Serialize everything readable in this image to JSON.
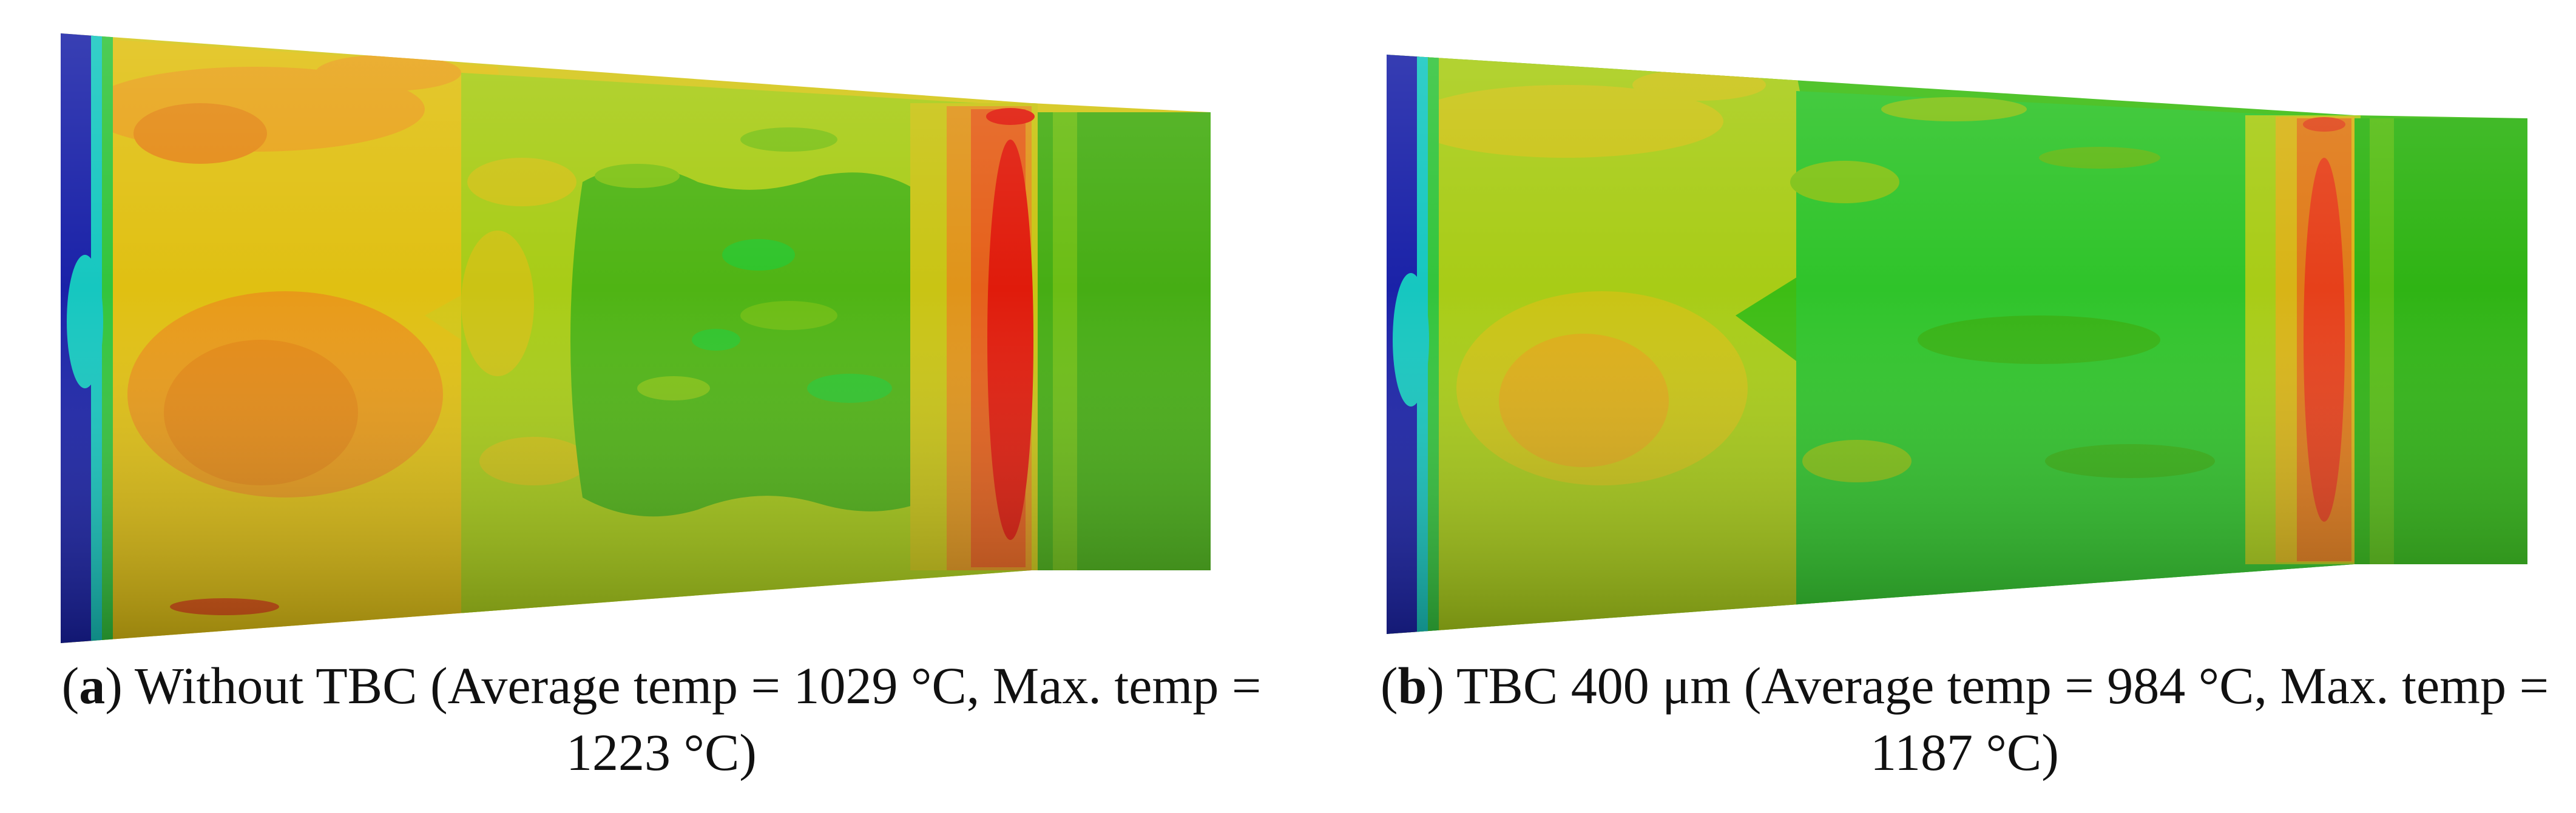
{
  "panels": [
    {
      "label": "a",
      "caption_line1": "Without TBC (Average temp = 1029 °C, Max. temp =",
      "caption_line2": "1223 °C)"
    },
    {
      "label": "b",
      "caption_line1": "TBC 400 μm (Average temp = 984 °C, Max. temp =",
      "caption_line2": "1187 °C)"
    }
  ],
  "colors": {
    "cold_blue": "#1a22a8",
    "cyan": "#16c7c0",
    "green": "#3fae12",
    "dark_green": "#1e7a0a",
    "yellow_green": "#a6cc10",
    "yellow": "#d8c40f",
    "orange": "#e08b10",
    "red": "#e01b0b"
  }
}
